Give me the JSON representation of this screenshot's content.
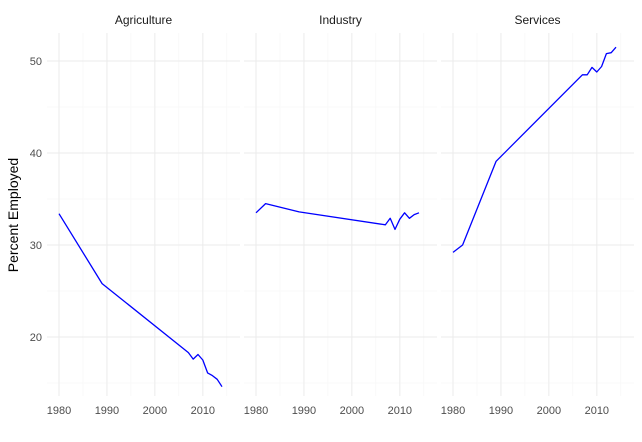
{
  "chart_data": {
    "type": "line",
    "ylabel": "Percent Employed",
    "xlabel": "",
    "xlim": [
      1979.3,
      1980.0,
      2014.0,
      2014.7
    ],
    "ylim": [
      13.1,
      53.3
    ],
    "xticks": [
      1980,
      1990,
      2000,
      2010
    ],
    "yticks": [
      20,
      30,
      40,
      50
    ],
    "grid": true,
    "series_color": "#0000ff",
    "panels": [
      {
        "name": "Agriculture",
        "x": [
          1980,
          1989,
          2007,
          2008,
          2009,
          2010,
          2011,
          2012,
          2013,
          2014
        ],
        "y": [
          33.4,
          25.8,
          18.3,
          17.6,
          18.1,
          17.5,
          16.1,
          15.8,
          15.4,
          14.6
        ]
      },
      {
        "name": "Industry",
        "x": [
          1980,
          1982,
          1989,
          2007,
          2008,
          2009,
          2010,
          2011,
          2012,
          2013,
          2014
        ],
        "y": [
          33.5,
          34.5,
          33.6,
          32.2,
          32.9,
          31.7,
          32.8,
          33.5,
          32.9,
          33.3,
          33.5
        ]
      },
      {
        "name": "Services",
        "x": [
          1980,
          1982,
          1989,
          2007,
          2008,
          2009,
          2010,
          2011,
          2012,
          2013,
          2014
        ],
        "y": [
          29.2,
          30.0,
          39.1,
          48.5,
          48.5,
          49.3,
          48.8,
          49.4,
          50.8,
          50.9,
          51.5
        ]
      }
    ]
  }
}
